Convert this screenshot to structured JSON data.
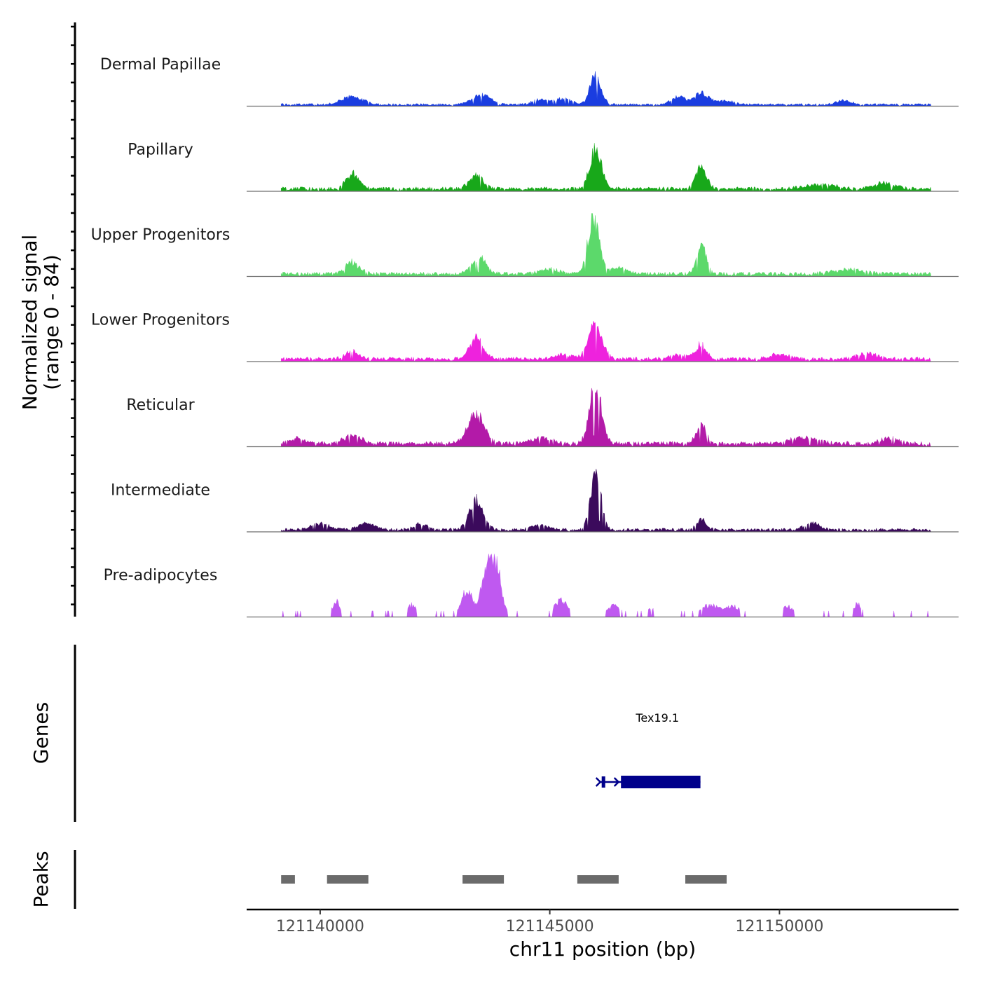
{
  "chart_data": {
    "type": "area",
    "title": "",
    "chromosome": "chr11",
    "xlabel": "chr11 position (bp)",
    "ylabel": "Normalized signal\n(range 0 - 84)",
    "xlim": [
      121138400,
      121153900
    ],
    "ylim": [
      0,
      84
    ],
    "x_ticks": [
      121140000,
      121145000,
      121150000
    ],
    "x_tick_labels": [
      "121140000",
      "121145000",
      "121150000"
    ],
    "signal_start": 121139150,
    "signal_end": 121153300,
    "tracks": [
      {
        "name": "Dermal Papillae",
        "color": "#1a3de0",
        "base": 3,
        "bumps": [
          [
            121146000,
            40,
            120
          ],
          [
            121140700,
            12,
            220
          ],
          [
            121143500,
            14,
            200
          ],
          [
            121145300,
            9,
            180
          ],
          [
            121147800,
            12,
            150
          ],
          [
            121148300,
            16,
            150
          ],
          [
            121144800,
            8,
            150
          ],
          [
            121151400,
            6,
            150
          ],
          [
            121148800,
            5,
            200
          ]
        ]
      },
      {
        "name": "Papillary",
        "color": "#18a81a",
        "base": 5,
        "bumps": [
          [
            121146000,
            56,
            130
          ],
          [
            121140700,
            22,
            140
          ],
          [
            121143400,
            18,
            150
          ],
          [
            121148300,
            33,
            110
          ],
          [
            121150900,
            6,
            300
          ],
          [
            121152300,
            8,
            200
          ]
        ]
      },
      {
        "name": "Upper Progenitors",
        "color": "#5cd96b",
        "base": 5,
        "bumps": [
          [
            121145950,
            80,
            120
          ],
          [
            121140700,
            16,
            150
          ],
          [
            121143450,
            24,
            150
          ],
          [
            121148300,
            40,
            100
          ],
          [
            121146500,
            8,
            200
          ],
          [
            121145000,
            6,
            200
          ],
          [
            121151500,
            6,
            300
          ]
        ]
      },
      {
        "name": "Lower Progenitors",
        "color": "#ee22dd",
        "base": 5,
        "bumps": [
          [
            121146000,
            50,
            150
          ],
          [
            121143400,
            30,
            150
          ],
          [
            121148300,
            20,
            120
          ],
          [
            121140700,
            10,
            150
          ],
          [
            121145300,
            6,
            200
          ],
          [
            121150000,
            7,
            200
          ],
          [
            121151900,
            8,
            200
          ],
          [
            121147800,
            6,
            200
          ]
        ]
      },
      {
        "name": "Reticular",
        "color": "#b31aa8",
        "base": 6,
        "bumps": [
          [
            121146000,
            80,
            130
          ],
          [
            121143400,
            40,
            180
          ],
          [
            121148300,
            26,
            110
          ],
          [
            121140700,
            11,
            200
          ],
          [
            121144800,
            9,
            200
          ],
          [
            121139500,
            7,
            150
          ],
          [
            121150500,
            8,
            300
          ],
          [
            121152400,
            7,
            200
          ]
        ]
      },
      {
        "name": "Intermediate",
        "color": "#3b0a5c",
        "base": 4,
        "bumps": [
          [
            121146000,
            90,
            110
          ],
          [
            121143400,
            41,
            150
          ],
          [
            121148300,
            14,
            100
          ],
          [
            121141000,
            9,
            200
          ],
          [
            121140000,
            9,
            200
          ],
          [
            121150700,
            10,
            150
          ],
          [
            121144800,
            6,
            200
          ],
          [
            121142200,
            8,
            150
          ]
        ]
      },
      {
        "name": "Pre-adipocytes",
        "color": "#bf59f0",
        "base": 0,
        "bumps": [
          [
            121143800,
            77,
            130
          ],
          [
            121143200,
            40,
            120
          ],
          [
            121143600,
            44,
            120
          ],
          [
            121140350,
            24,
            80
          ],
          [
            121145250,
            24,
            150
          ],
          [
            121142000,
            17,
            100
          ],
          [
            121148500,
            17,
            200
          ],
          [
            121149000,
            15,
            150
          ],
          [
            121150200,
            15,
            150
          ],
          [
            121146400,
            17,
            150
          ],
          [
            121151700,
            18,
            100
          ],
          [
            121147200,
            12,
            100
          ]
        ]
      }
    ],
    "genes": [
      {
        "name": "Tex19.1",
        "start": 121146100,
        "end": 121148280,
        "thick_start": 121146550,
        "thick_end": 121148280,
        "color": "#00008b"
      }
    ],
    "peaks_color": "#6b6b6b",
    "peaks": [
      [
        121139150,
        121139450
      ],
      [
        121140150,
        121141050
      ],
      [
        121143100,
        121144000
      ],
      [
        121145600,
        121146500
      ],
      [
        121147950,
        121148850
      ]
    ],
    "panels": [
      "Genes",
      "Peaks"
    ]
  }
}
